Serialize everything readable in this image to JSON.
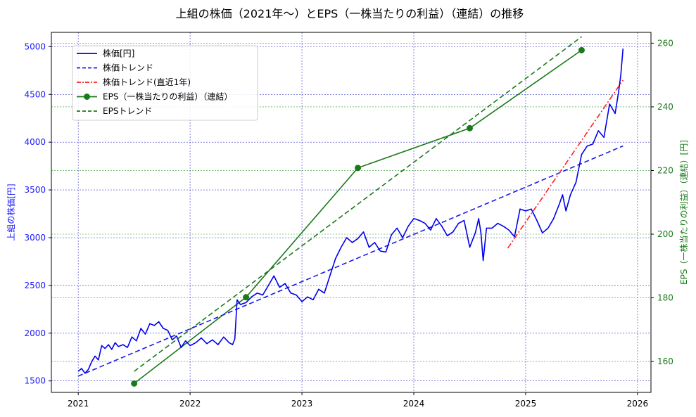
{
  "chart_data": {
    "type": "line",
    "title": "上組の株価（2021年～）とEPS（一株当たりの利益）（連結）の推移",
    "xlabel": "",
    "ylabel_left": "上組の株価[円]",
    "ylabel_right": "EPS（一株当たりの利益）（連結）[円]",
    "x_ticks": [
      "2021",
      "2022",
      "2023",
      "2024",
      "2025",
      "2026"
    ],
    "x_range": [
      2020.76,
      2026.12
    ],
    "y_left_ticks": [
      1500,
      2000,
      2500,
      3000,
      3500,
      4000,
      4500,
      5000
    ],
    "y_left_range": [
      1380,
      5150
    ],
    "y_right_ticks": [
      160,
      180,
      200,
      220,
      240,
      260
    ],
    "y_right_range": [
      150.3,
      263.4
    ],
    "grid": true,
    "legend_position": "upper left",
    "colors": {
      "price": "#0000ee",
      "price_trend": "#1a1aee",
      "recent_trend": "#ff2020",
      "eps": "#1a7a1a",
      "eps_trend": "#1a7a1a",
      "grid_left": "#3333cc",
      "grid_right": "#339933"
    },
    "legend": [
      {
        "label": "株価[円]",
        "style": "solid",
        "color": "#0000ee"
      },
      {
        "label": "株価トレンド",
        "style": "dashed",
        "color": "#1a1aee"
      },
      {
        "label": "株価トレンド(直近1年)",
        "style": "dashdot",
        "color": "#ff2020"
      },
      {
        "label": "EPS（一株当たりの利益）（連結）",
        "style": "solid-marker",
        "color": "#1a7a1a"
      },
      {
        "label": "EPSトレンド",
        "style": "dashed",
        "color": "#1a7a1a"
      }
    ],
    "series": [
      {
        "name": "株価[円]",
        "axis": "left",
        "x": [
          2021.0,
          2021.03,
          2021.06,
          2021.09,
          2021.12,
          2021.15,
          2021.18,
          2021.21,
          2021.24,
          2021.27,
          2021.3,
          2021.33,
          2021.36,
          2021.4,
          2021.44,
          2021.48,
          2021.52,
          2021.56,
          2021.6,
          2021.64,
          2021.68,
          2021.72,
          2021.76,
          2021.8,
          2021.84,
          2021.88,
          2021.92,
          2021.96,
          2022.0,
          2022.05,
          2022.1,
          2022.15,
          2022.2,
          2022.25,
          2022.3,
          2022.35,
          2022.38,
          2022.4,
          2022.42,
          2022.45,
          2022.5,
          2022.55,
          2022.6,
          2022.65,
          2022.7,
          2022.75,
          2022.8,
          2022.85,
          2022.9,
          2022.95,
          2023.0,
          2023.05,
          2023.1,
          2023.15,
          2023.2,
          2023.25,
          2023.3,
          2023.35,
          2023.4,
          2023.45,
          2023.5,
          2023.55,
          2023.6,
          2023.65,
          2023.7,
          2023.75,
          2023.8,
          2023.85,
          2023.9,
          2023.95,
          2024.0,
          2024.05,
          2024.1,
          2024.15,
          2024.2,
          2024.25,
          2024.3,
          2024.35,
          2024.4,
          2024.45,
          2024.5,
          2024.55,
          2024.58,
          2024.6,
          2024.62,
          2024.65,
          2024.7,
          2024.75,
          2024.8,
          2024.85,
          2024.9,
          2024.95,
          2025.0,
          2025.05,
          2025.1,
          2025.15,
          2025.2,
          2025.25,
          2025.3,
          2025.33,
          2025.36,
          2025.4,
          2025.45,
          2025.5,
          2025.55,
          2025.6,
          2025.65,
          2025.7,
          2025.75,
          2025.8,
          2025.83,
          2025.85,
          2025.87
        ],
        "values": [
          1600,
          1630,
          1580,
          1620,
          1700,
          1760,
          1720,
          1870,
          1840,
          1880,
          1830,
          1900,
          1860,
          1880,
          1850,
          1960,
          1920,
          2050,
          1990,
          2100,
          2080,
          2120,
          2050,
          2030,
          1930,
          1970,
          1850,
          1920,
          1870,
          1900,
          1950,
          1890,
          1930,
          1880,
          1960,
          1900,
          1880,
          1940,
          2350,
          2300,
          2320,
          2380,
          2420,
          2400,
          2500,
          2600,
          2480,
          2520,
          2420,
          2400,
          2330,
          2380,
          2350,
          2460,
          2420,
          2600,
          2780,
          2900,
          3000,
          2950,
          2990,
          3060,
          2900,
          2950,
          2860,
          2850,
          3030,
          3100,
          3000,
          3120,
          3200,
          3180,
          3150,
          3080,
          3200,
          3120,
          3020,
          3060,
          3150,
          3180,
          2900,
          3050,
          3200,
          3050,
          2760,
          3100,
          3100,
          3150,
          3120,
          3080,
          3010,
          3300,
          3280,
          3300,
          3180,
          3050,
          3100,
          3200,
          3350,
          3450,
          3280,
          3450,
          3580,
          3870,
          3960,
          3980,
          4120,
          4050,
          4400,
          4300,
          4520,
          4700,
          4980
        ]
      },
      {
        "name": "株価トレンド",
        "axis": "left",
        "x": [
          2021.0,
          2025.87
        ],
        "values": [
          1550,
          3960
        ]
      },
      {
        "name": "株価トレンド(直近1年)",
        "axis": "left",
        "x": [
          2024.84,
          2025.87
        ],
        "values": [
          2890,
          4650
        ]
      },
      {
        "name": "EPS（一株当たりの利益）（連結）",
        "axis": "right",
        "x": [
          2021.5,
          2022.5,
          2023.5,
          2024.5,
          2025.5
        ],
        "values": [
          153.1,
          180.2,
          220.8,
          233.3,
          257.8
        ]
      },
      {
        "name": "EPSトレンド",
        "axis": "right",
        "x": [
          2021.5,
          2025.5
        ],
        "values": [
          156.9,
          262.0
        ]
      }
    ]
  }
}
